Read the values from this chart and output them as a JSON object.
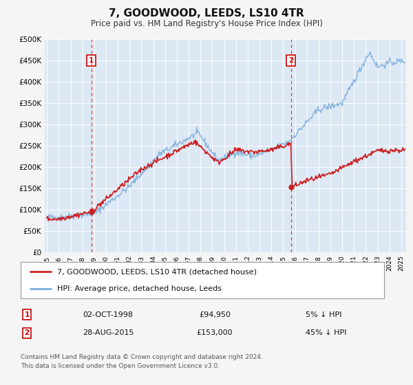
{
  "title": "7, GOODWOOD, LEEDS, LS10 4TR",
  "subtitle": "Price paid vs. HM Land Registry's House Price Index (HPI)",
  "hpi_color": "#7aaddc",
  "price_color": "#cc2222",
  "dashed_line_color": "#dd4444",
  "background_color": "#f5f5f5",
  "plot_bg_color": "#dde8f5",
  "grid_color": "#ffffff",
  "ylim": [
    0,
    500000
  ],
  "xlim_start": 1994.8,
  "xlim_end": 2025.4,
  "yticks": [
    0,
    50000,
    100000,
    150000,
    200000,
    250000,
    300000,
    350000,
    400000,
    450000,
    500000
  ],
  "ytick_labels": [
    "£0",
    "£50K",
    "£100K",
    "£150K",
    "£200K",
    "£250K",
    "£300K",
    "£350K",
    "£400K",
    "£450K",
    "£500K"
  ],
  "xticks": [
    1995,
    1996,
    1997,
    1998,
    1999,
    2000,
    2001,
    2002,
    2003,
    2004,
    2005,
    2006,
    2007,
    2008,
    2009,
    2010,
    2011,
    2012,
    2013,
    2014,
    2015,
    2016,
    2017,
    2018,
    2019,
    2020,
    2021,
    2022,
    2023,
    2024,
    2025
  ],
  "sale1_x": 1998.75,
  "sale1_y": 94950,
  "sale1_label": "1",
  "sale1_date": "02-OCT-1998",
  "sale1_price": "£94,950",
  "sale1_hpi": "5% ↓ HPI",
  "sale2_x": 2015.65,
  "sale2_y": 153000,
  "sale2_label": "2",
  "sale2_date": "28-AUG-2015",
  "sale2_price": "£153,000",
  "sale2_hpi": "45% ↓ HPI",
  "legend_label1": "7, GOODWOOD, LEEDS, LS10 4TR (detached house)",
  "legend_label2": "HPI: Average price, detached house, Leeds",
  "footer1": "Contains HM Land Registry data © Crown copyright and database right 2024.",
  "footer2": "This data is licensed under the Open Government Licence v3.0."
}
